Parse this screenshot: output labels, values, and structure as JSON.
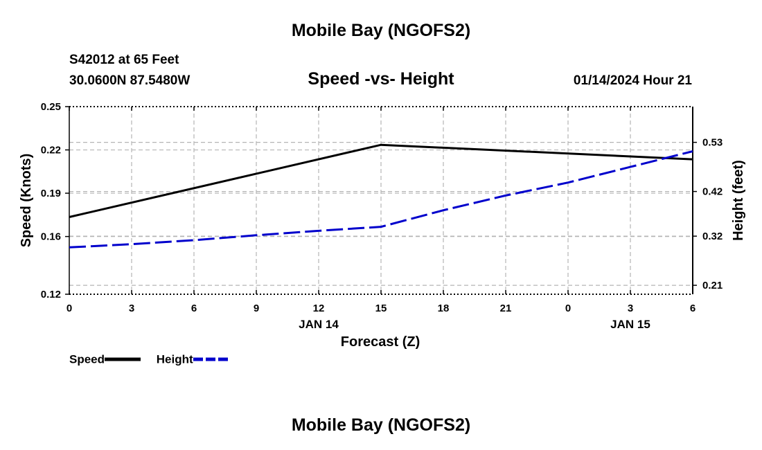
{
  "header": {
    "main_title": "Mobile Bay (NGOFS2)",
    "station": "S42012 at 65 Feet",
    "coords": "30.0600N  87.5480W",
    "chart_title": "Speed -vs- Height",
    "datetime": "01/14/2024 Hour 21"
  },
  "footer": {
    "title": "Mobile Bay (NGOFS2)"
  },
  "legend": {
    "speed_label": "Speed",
    "height_label": "Height"
  },
  "colors": {
    "speed": "#000000",
    "height": "#0000cc",
    "grid": "#b4b4b4"
  },
  "chart_data": {
    "type": "line",
    "title": "Speed -vs- Height",
    "xlabel": "Forecast (Z)",
    "ylabel": "Speed (Knots)",
    "y2label": "Height (feet)",
    "x": [
      0,
      3,
      6,
      9,
      12,
      15,
      18,
      21,
      24,
      27,
      30
    ],
    "xlim": [
      0,
      30
    ],
    "x_tick_labels": [
      "0",
      "3",
      "6",
      "9",
      "12",
      "15",
      "18",
      "21",
      "0",
      "3",
      "6"
    ],
    "date_labels": [
      {
        "x": 12,
        "label": "JAN 14"
      },
      {
        "x": 27,
        "label": "JAN 15"
      }
    ],
    "ylim": [
      0.12,
      0.25
    ],
    "y_ticks": [
      0.12,
      0.16,
      0.19,
      0.22,
      0.25
    ],
    "y_tick_labels": [
      "0.12",
      "0.16",
      "0.19",
      "0.22",
      "0.25"
    ],
    "y2_ticks": [
      0.21,
      0.32,
      0.42,
      0.53
    ],
    "y2_tick_labels": [
      "0.21",
      "0.32",
      "0.42",
      "0.53"
    ],
    "y2_at_ymin": 0.19,
    "y2_at_ymax": 0.61,
    "grid": true,
    "series": [
      {
        "name": "Speed",
        "axis": "left",
        "style": "solid",
        "points": [
          [
            0,
            0.1735
          ],
          [
            15,
            0.2235
          ],
          [
            30,
            0.2135
          ]
        ]
      },
      {
        "name": "Height",
        "axis": "right",
        "style": "dashed",
        "points": [
          [
            0,
            0.295
          ],
          [
            3,
            0.302
          ],
          [
            6,
            0.311
          ],
          [
            9,
            0.322
          ],
          [
            12,
            0.332
          ],
          [
            15,
            0.341
          ],
          [
            18,
            0.378
          ],
          [
            21,
            0.411
          ],
          [
            24,
            0.44
          ],
          [
            27,
            0.475
          ],
          [
            30,
            0.51
          ]
        ]
      }
    ]
  }
}
